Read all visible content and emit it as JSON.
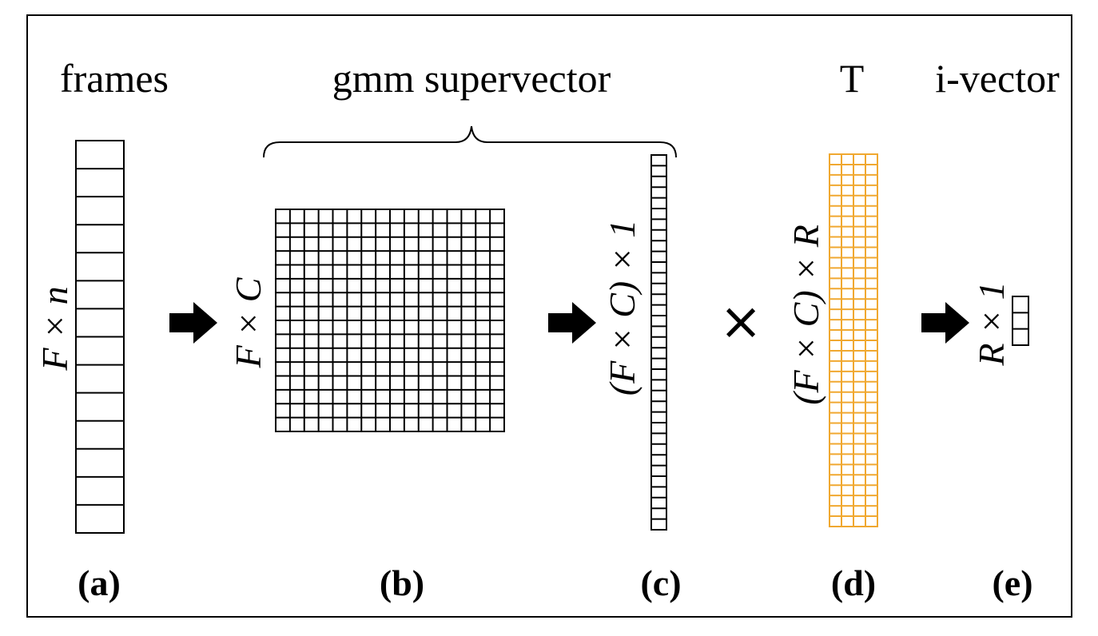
{
  "titles": {
    "frames": "frames",
    "gmm": "gmm supervector",
    "t": "T",
    "ivector": "i-vector"
  },
  "dims": {
    "a": "F × n",
    "b": "F × C",
    "c": "(F × C) × 1",
    "d": "(F × C) × R",
    "e": "R × 1"
  },
  "captions": {
    "a": "(a)",
    "b": "(b)",
    "c": "(c)",
    "d": "(d)",
    "e": "(e)"
  },
  "operator": "×",
  "colors": {
    "ink": "#000000",
    "t_matrix": "#f0a830",
    "background": "#ffffff"
  }
}
